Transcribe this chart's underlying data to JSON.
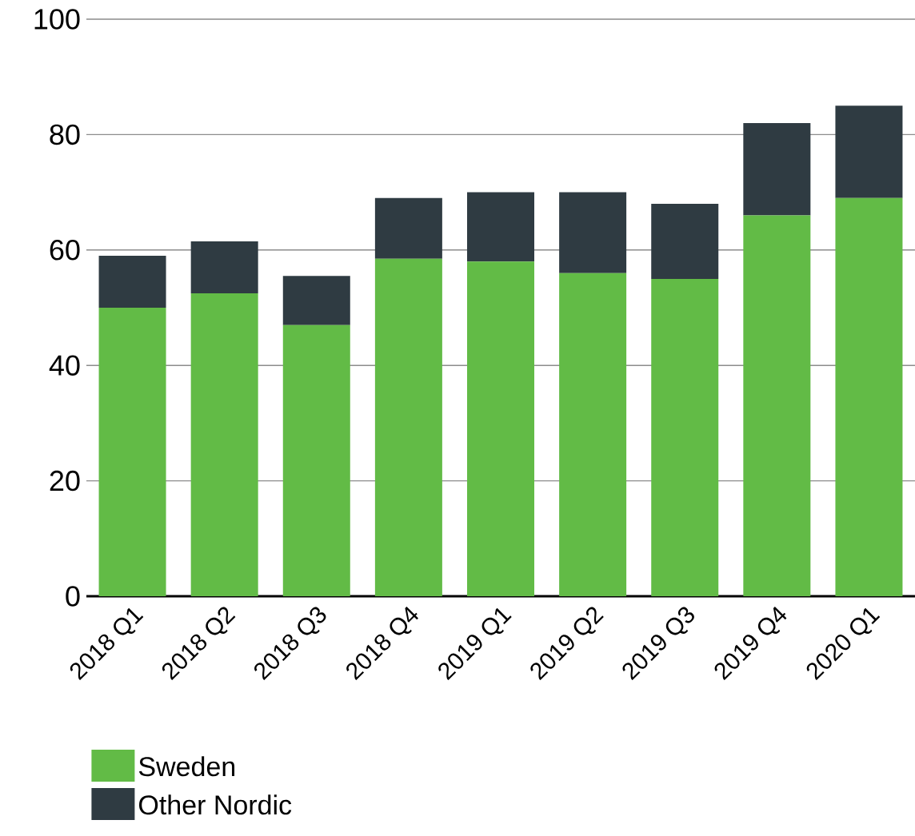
{
  "chart_data": {
    "type": "bar",
    "stacked": true,
    "categories": [
      "2018 Q1",
      "2018 Q2",
      "2018 Q3",
      "2018 Q4",
      "2019 Q1",
      "2019 Q2",
      "2019 Q3",
      "2019 Q4",
      "2020 Q1"
    ],
    "series": [
      {
        "name": "Sweden",
        "color": "#62bb46",
        "values": [
          50,
          52.5,
          47,
          58.5,
          58,
          56,
          55,
          66,
          69
        ]
      },
      {
        "name": "Other Nordic",
        "color": "#2f3b42",
        "values": [
          9,
          9,
          8.5,
          10.5,
          12,
          14,
          13,
          16,
          16
        ]
      }
    ],
    "ylim": [
      0,
      100
    ],
    "yticks": [
      0,
      20,
      40,
      60,
      80,
      100
    ],
    "grid": "y",
    "legend": "bottom"
  }
}
